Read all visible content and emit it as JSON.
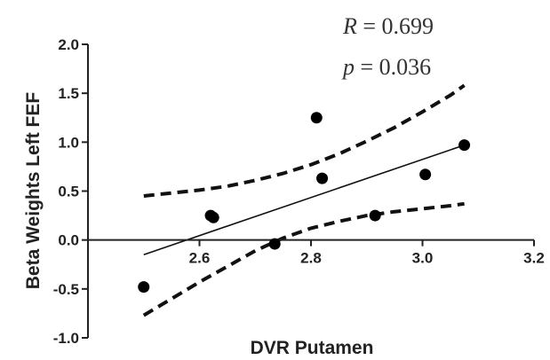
{
  "chart_data": {
    "type": "scatter",
    "xlabel": "DVR Putamen",
    "ylabel": "Beta Weights Left FEF",
    "xlim": [
      2.4,
      3.2
    ],
    "ylim": [
      -1.0,
      2.0
    ],
    "xticks": [
      2.6,
      2.8,
      3.0,
      3.2
    ],
    "xtick_labels": [
      "2.6",
      "2.8",
      "3.0",
      "3.2"
    ],
    "yticks": [
      -1.0,
      -0.5,
      0.0,
      0.5,
      1.0,
      1.5,
      2.0
    ],
    "ytick_labels": [
      "-1.0",
      "-0.5",
      "0.0",
      "0.5",
      "1.0",
      "1.5",
      "2.0"
    ],
    "grid": false,
    "points": [
      {
        "x": 2.5,
        "y": -0.48
      },
      {
        "x": 2.62,
        "y": 0.25
      },
      {
        "x": 2.625,
        "y": 0.23
      },
      {
        "x": 2.735,
        "y": -0.04
      },
      {
        "x": 2.81,
        "y": 1.25
      },
      {
        "x": 2.82,
        "y": 0.63
      },
      {
        "x": 2.915,
        "y": 0.25
      },
      {
        "x": 3.005,
        "y": 0.67
      },
      {
        "x": 3.075,
        "y": 0.97
      }
    ],
    "fit_line": {
      "x": [
        2.5,
        3.075
      ],
      "y": [
        -0.15,
        0.97
      ]
    },
    "ci_upper": {
      "x": [
        2.5,
        2.55,
        2.6,
        2.65,
        2.7,
        2.75,
        2.8,
        2.85,
        2.9,
        2.95,
        3.0,
        3.05,
        3.075
      ],
      "y": [
        0.45,
        0.48,
        0.51,
        0.55,
        0.61,
        0.68,
        0.77,
        0.88,
        1.01,
        1.15,
        1.31,
        1.48,
        1.58
      ]
    },
    "ci_lower": {
      "x": [
        2.5,
        2.55,
        2.6,
        2.65,
        2.7,
        2.75,
        2.8,
        2.85,
        2.9,
        2.95,
        3.0,
        3.05,
        3.075
      ],
      "y": [
        -0.77,
        -0.6,
        -0.43,
        -0.27,
        -0.11,
        0.02,
        0.12,
        0.19,
        0.25,
        0.29,
        0.32,
        0.35,
        0.37
      ]
    },
    "annotations": {
      "r_var": "R",
      "r_value": " = 0.699",
      "p_var": "p",
      "p_value": " = 0.036"
    }
  }
}
